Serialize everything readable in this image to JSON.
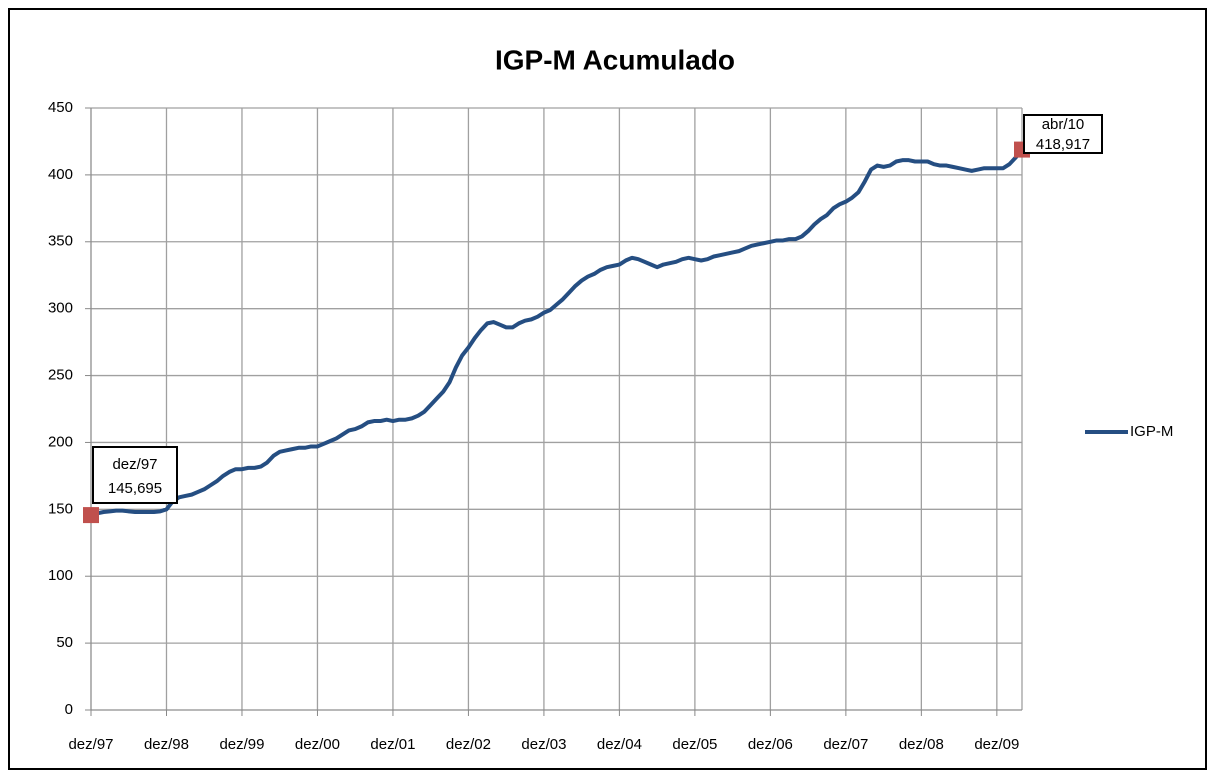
{
  "chart_data": {
    "type": "line",
    "title": "IGP-M Acumulado",
    "categories": [
      "dez/97",
      null,
      null,
      null,
      null,
      null,
      null,
      null,
      null,
      null,
      null,
      null,
      "dez/98",
      null,
      null,
      null,
      null,
      null,
      null,
      null,
      null,
      null,
      null,
      null,
      "dez/99",
      null,
      null,
      null,
      null,
      null,
      null,
      null,
      null,
      null,
      null,
      null,
      "dez/00",
      null,
      null,
      null,
      null,
      null,
      null,
      null,
      null,
      null,
      null,
      null,
      "dez/01",
      null,
      null,
      null,
      null,
      null,
      null,
      null,
      null,
      null,
      null,
      null,
      "dez/02",
      null,
      null,
      null,
      null,
      null,
      null,
      null,
      null,
      null,
      null,
      null,
      "dez/03",
      null,
      null,
      null,
      null,
      null,
      null,
      null,
      null,
      null,
      null,
      null,
      "dez/04",
      null,
      null,
      null,
      null,
      null,
      null,
      null,
      null,
      null,
      null,
      null,
      "dez/05",
      null,
      null,
      null,
      null,
      null,
      null,
      null,
      null,
      null,
      null,
      null,
      "dez/06",
      null,
      null,
      null,
      null,
      null,
      null,
      null,
      null,
      null,
      null,
      null,
      "dez/07",
      null,
      null,
      null,
      null,
      null,
      null,
      null,
      null,
      null,
      null,
      null,
      "dez/08",
      null,
      null,
      null,
      null,
      null,
      null,
      null,
      null,
      null,
      null,
      null,
      "dez/09",
      null,
      null,
      null,
      "abr/10"
    ],
    "series": [
      {
        "name": "IGP-M",
        "color": "#254e82",
        "values": [
          145.695,
          147,
          148,
          148.5,
          149,
          149,
          148.5,
          148,
          148,
          148,
          148,
          148.5,
          150,
          156,
          159,
          160,
          161,
          163,
          165,
          168,
          171,
          175,
          178,
          180,
          180,
          181,
          181,
          182,
          185,
          190,
          193,
          194,
          195,
          196,
          196,
          197,
          197,
          199,
          201,
          203,
          206,
          209,
          210,
          212,
          215,
          216,
          216,
          217,
          216,
          217,
          217,
          218,
          220,
          223,
          228,
          233,
          238,
          245,
          256,
          265,
          271,
          278,
          284,
          289,
          290,
          288,
          286,
          286,
          289,
          291,
          292,
          294,
          297,
          299,
          303,
          307,
          312,
          317,
          321,
          324,
          326,
          329,
          331,
          332,
          333,
          336,
          338,
          337,
          335,
          333,
          331,
          333,
          334,
          335,
          337,
          338,
          337,
          336,
          337,
          339,
          340,
          341,
          342,
          343,
          345,
          347,
          348,
          349,
          350,
          351,
          351,
          352,
          352,
          354,
          358,
          363,
          367,
          370,
          375,
          378,
          380,
          383,
          387,
          395,
          404,
          407,
          406,
          407,
          410,
          411,
          411,
          410,
          410,
          410,
          408,
          407,
          407,
          406,
          405,
          404,
          403,
          404,
          405,
          405,
          405,
          405,
          408,
          413,
          418.917
        ],
        "value_labels": [
          "145,695",
          null,
          null,
          null,
          null,
          null,
          null,
          null,
          null,
          null,
          null,
          null,
          null,
          null,
          null,
          null,
          null,
          null,
          null,
          null,
          null,
          null,
          null,
          null,
          null,
          null,
          null,
          null,
          null,
          null,
          null,
          null,
          null,
          null,
          null,
          null,
          null,
          null,
          null,
          null,
          null,
          null,
          null,
          null,
          null,
          null,
          null,
          null,
          null,
          null,
          null,
          null,
          null,
          null,
          null,
          null,
          null,
          null,
          null,
          null,
          null,
          null,
          null,
          null,
          null,
          null,
          null,
          null,
          null,
          null,
          null,
          null,
          null,
          null,
          null,
          null,
          null,
          null,
          null,
          null,
          null,
          null,
          null,
          null,
          null,
          null,
          null,
          null,
          null,
          null,
          null,
          null,
          null,
          null,
          null,
          null,
          null,
          null,
          null,
          null,
          null,
          null,
          null,
          null,
          null,
          null,
          null,
          null,
          null,
          null,
          null,
          null,
          null,
          null,
          null,
          null,
          null,
          null,
          null,
          null,
          null,
          null,
          null,
          null,
          null,
          null,
          null,
          null,
          null,
          null,
          null,
          null,
          null,
          null,
          null,
          null,
          null,
          null,
          null,
          null,
          null,
          null,
          null,
          null,
          null,
          null,
          null,
          null,
          "418,917"
        ],
        "marker_color": "#c0504d"
      }
    ],
    "ylim": [
      0,
      450
    ],
    "yticks": [
      0,
      50,
      100,
      150,
      200,
      250,
      300,
      350,
      400,
      450
    ],
    "grid": true,
    "legend": "right"
  }
}
